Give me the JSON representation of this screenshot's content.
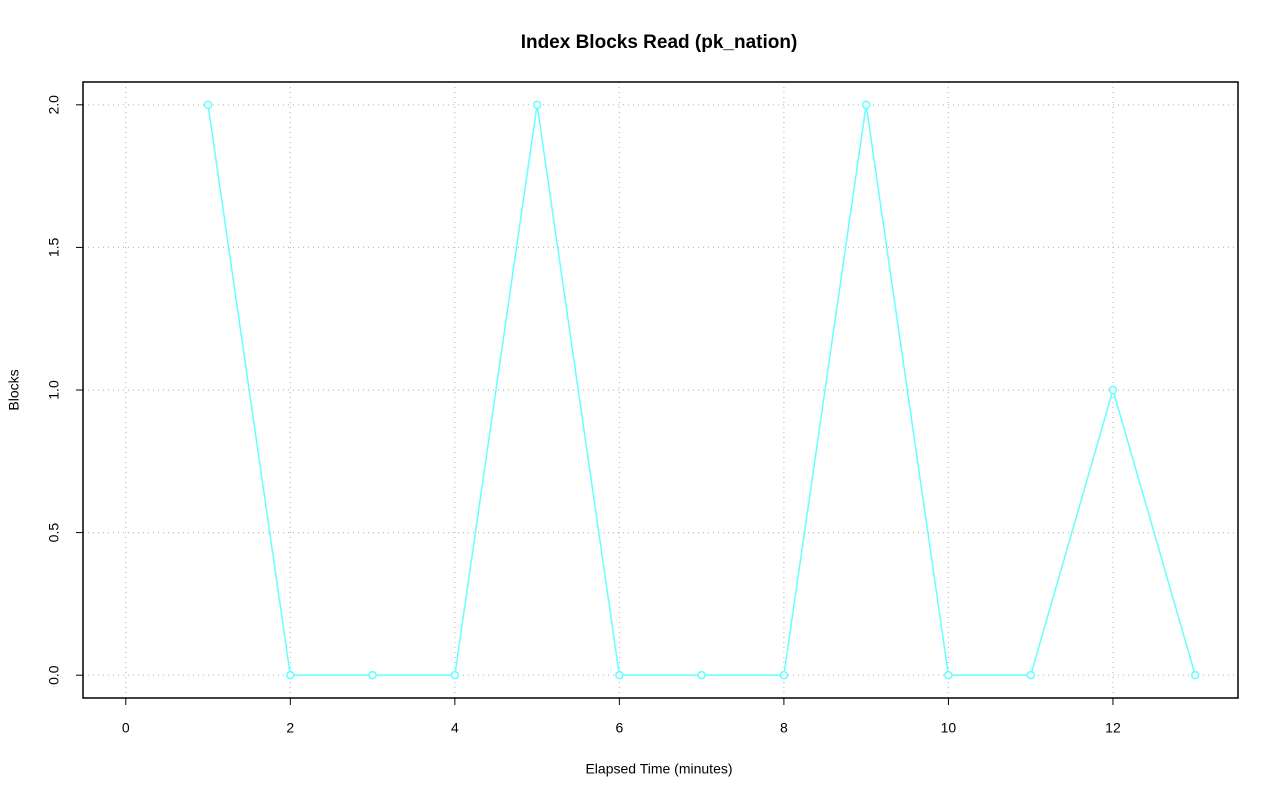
{
  "chart_data": {
    "type": "line",
    "title": "Index Blocks Read (pk_nation)",
    "x_label": "Elapsed Time (minutes)",
    "y_label": "Blocks",
    "x": [
      1,
      2,
      3,
      4,
      5,
      6,
      7,
      8,
      9,
      10,
      11,
      12,
      13
    ],
    "series": [
      {
        "name": "pk_nation",
        "color": "#66ffff",
        "values": [
          2,
          0,
          0,
          0,
          2,
          0,
          0,
          0,
          2,
          0,
          0,
          1,
          0
        ]
      }
    ],
    "xlim": [
      -0.52,
      13.52
    ],
    "xticks": [
      0,
      2,
      4,
      6,
      8,
      10,
      12
    ],
    "ylim": [
      -0.08,
      2.08
    ],
    "yticks": [
      {
        "value": 0,
        "label": "0.0"
      },
      {
        "value": 0.5,
        "label": "0.5"
      },
      {
        "value": 1,
        "label": "1.0"
      },
      {
        "value": 1.5,
        "label": "1.5"
      },
      {
        "value": 2,
        "label": "2.0"
      }
    ],
    "grid": true
  }
}
